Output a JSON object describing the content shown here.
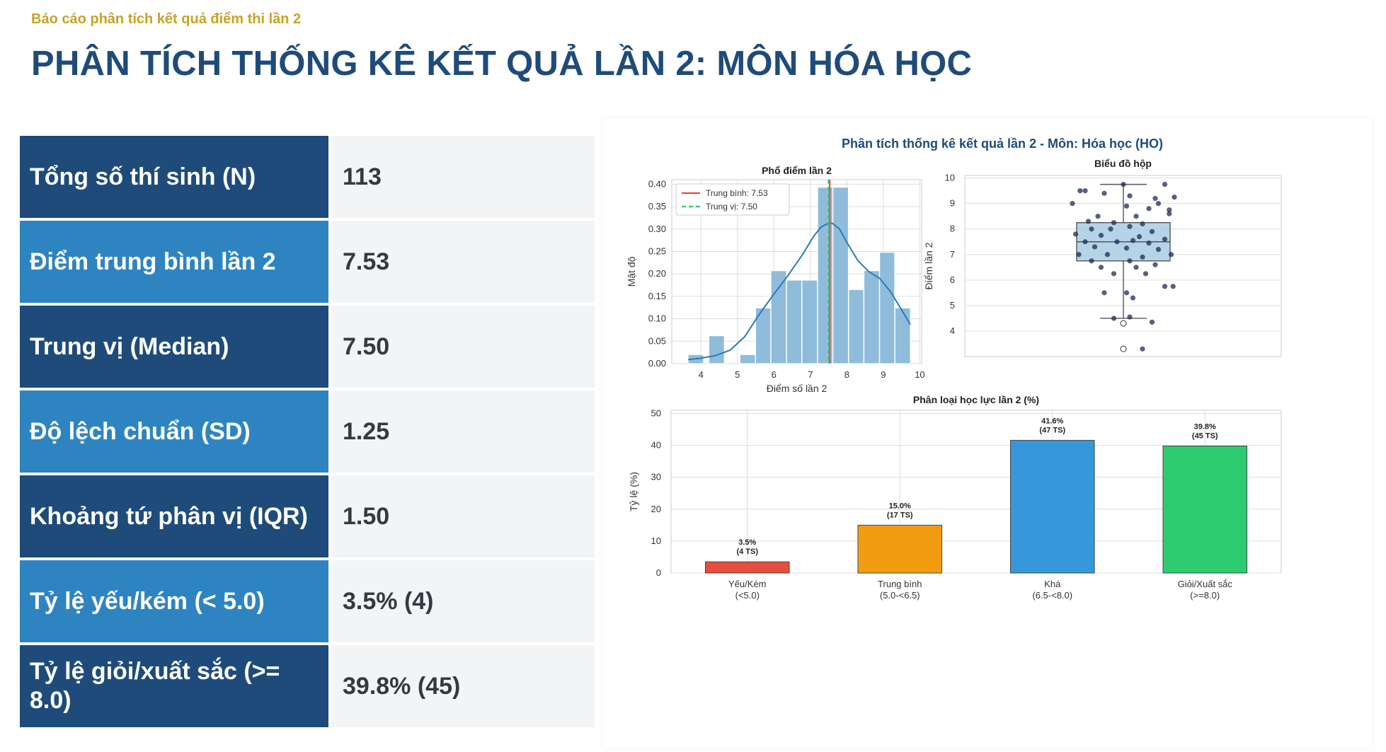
{
  "header": {
    "kicker": "Báo cáo phân tích kết quả điểm thi lần 2",
    "title": "PHÂN TÍCH THỐNG KÊ KẾT QUẢ LẦN 2: MÔN HÓA HỌC"
  },
  "stats": [
    {
      "label": "Tổng số thí sinh (N)",
      "value": "113"
    },
    {
      "label": "Điểm trung bình lần 2",
      "value": "7.53"
    },
    {
      "label": "Trung vị (Median)",
      "value": "7.50"
    },
    {
      "label": "Độ lệch chuẩn (SD)",
      "value": "1.25"
    },
    {
      "label": "Khoảng tứ phân vị (IQR)",
      "value": "1.50"
    },
    {
      "label": "Tỷ lệ yếu/kém (< 5.0)",
      "value": "3.5% (4)"
    },
    {
      "label": "Tỷ lệ giỏi/xuất sắc (>= 8.0)",
      "value": "39.8% (45)"
    }
  ],
  "colors": {
    "dark_label": "#1e4b7a",
    "light_label": "#2e84c1",
    "kicker": "#c9a227",
    "hist_bar": "#8fbcdb",
    "kde": "#2a7ab5",
    "mean_line": "#e74c3c",
    "median_line": "#2ecc71"
  },
  "chart_data": [
    {
      "type": "histogram",
      "suptitle": "Phân tích thống kê kết quả lần 2 - Môn: Hóa học (HO)",
      "title": "Phổ điểm lần 2",
      "xlabel": "Điểm số lần 2",
      "ylabel": "Mật độ",
      "xlim": [
        3.2,
        10.05
      ],
      "ylim": [
        0,
        0.41
      ],
      "xticks": [
        4,
        5,
        6,
        7,
        8,
        9,
        10
      ],
      "yticks": [
        0.0,
        0.05,
        0.1,
        0.15,
        0.2,
        0.25,
        0.3,
        0.35,
        0.4
      ],
      "grid": true,
      "bins": [
        {
          "x0": 3.65,
          "x1": 4.07,
          "density": 0.02
        },
        {
          "x0": 4.22,
          "x1": 4.64,
          "density": 0.062
        },
        {
          "x0": 4.65,
          "x1": 5.06,
          "density": 0.0
        },
        {
          "x0": 5.07,
          "x1": 5.49,
          "density": 0.02
        },
        {
          "x0": 5.5,
          "x1": 5.91,
          "density": 0.124
        },
        {
          "x0": 5.92,
          "x1": 6.34,
          "density": 0.207
        },
        {
          "x0": 6.35,
          "x1": 6.76,
          "density": 0.186
        },
        {
          "x0": 6.77,
          "x1": 7.19,
          "density": 0.186
        },
        {
          "x0": 7.2,
          "x1": 7.61,
          "density": 0.393
        },
        {
          "x0": 7.62,
          "x1": 8.04,
          "density": 0.393
        },
        {
          "x0": 8.05,
          "x1": 8.46,
          "density": 0.165
        },
        {
          "x0": 8.47,
          "x1": 8.89,
          "density": 0.207
        },
        {
          "x0": 8.9,
          "x1": 9.31,
          "density": 0.248
        },
        {
          "x0": 9.32,
          "x1": 9.74,
          "density": 0.124
        }
      ],
      "kde": {
        "x": [
          3.65,
          4.0,
          4.4,
          4.8,
          5.2,
          5.6,
          6.0,
          6.4,
          6.8,
          7.1,
          7.3,
          7.5,
          7.6,
          7.8,
          8.0,
          8.3,
          8.6,
          8.9,
          9.2,
          9.5,
          9.74
        ],
        "y": [
          0.009,
          0.012,
          0.018,
          0.03,
          0.06,
          0.11,
          0.155,
          0.198,
          0.245,
          0.285,
          0.305,
          0.313,
          0.313,
          0.3,
          0.27,
          0.23,
          0.205,
          0.19,
          0.16,
          0.12,
          0.087
        ]
      },
      "mean": 7.53,
      "median": 7.5,
      "legend": [
        "Trung bình: 7.53",
        "Trung vị: 7.50"
      ],
      "legend_position": "upper-left"
    },
    {
      "type": "box",
      "title": "Biểu đồ hộp",
      "ylabel": "Điểm lần 2",
      "ylim": [
        3,
        10.1
      ],
      "yticks": [
        4,
        5,
        6,
        7,
        8,
        9,
        10
      ],
      "q1": 6.75,
      "median": 7.5,
      "q3": 8.25,
      "whisker_low": 4.5,
      "whisker_high": 9.75,
      "outliers": [
        4.3,
        3.3
      ],
      "points": [
        {
          "dx": -0.68,
          "y": 9.5
        },
        {
          "dx": -0.6,
          "y": 9.5
        },
        {
          "dx": -0.3,
          "y": 9.4
        },
        {
          "dx": 0.1,
          "y": 9.3
        },
        {
          "dx": 0.5,
          "y": 9.2
        },
        {
          "dx": 0.8,
          "y": 9.25
        },
        {
          "dx": 0.55,
          "y": 9.0
        },
        {
          "dx": -0.8,
          "y": 9.0
        },
        {
          "dx": 0.05,
          "y": 8.9
        },
        {
          "dx": 0.4,
          "y": 8.8
        },
        {
          "dx": 0.72,
          "y": 8.6
        },
        {
          "dx": -0.4,
          "y": 8.5
        },
        {
          "dx": 0.2,
          "y": 8.5
        },
        {
          "dx": -0.55,
          "y": 8.3
        },
        {
          "dx": -0.15,
          "y": 8.25
        },
        {
          "dx": 0.3,
          "y": 8.2
        },
        {
          "dx": -0.5,
          "y": 8.0
        },
        {
          "dx": -0.2,
          "y": 8.0
        },
        {
          "dx": 0.1,
          "y": 8.1
        },
        {
          "dx": 0.45,
          "y": 7.9
        },
        {
          "dx": -0.75,
          "y": 7.8
        },
        {
          "dx": -0.35,
          "y": 7.75
        },
        {
          "dx": 0.25,
          "y": 7.7
        },
        {
          "dx": 0.65,
          "y": 7.6
        },
        {
          "dx": -0.6,
          "y": 7.5
        },
        {
          "dx": -0.1,
          "y": 7.5
        },
        {
          "dx": 0.15,
          "y": 7.55
        },
        {
          "dx": 0.4,
          "y": 7.45
        },
        {
          "dx": -0.45,
          "y": 7.3
        },
        {
          "dx": 0.05,
          "y": 7.25
        },
        {
          "dx": 0.55,
          "y": 7.2
        },
        {
          "dx": 0.75,
          "y": 7.0
        },
        {
          "dx": -0.7,
          "y": 7.0
        },
        {
          "dx": -0.25,
          "y": 7.0
        },
        {
          "dx": 0.3,
          "y": 6.9
        },
        {
          "dx": -0.5,
          "y": 6.75
        },
        {
          "dx": 0.1,
          "y": 6.75
        },
        {
          "dx": 0.5,
          "y": 6.6
        },
        {
          "dx": -0.35,
          "y": 6.5
        },
        {
          "dx": 0.2,
          "y": 6.5
        },
        {
          "dx": -0.15,
          "y": 6.25
        },
        {
          "dx": 0.35,
          "y": 6.25
        },
        {
          "dx": 0.65,
          "y": 5.75
        },
        {
          "dx": 0.78,
          "y": 5.75
        },
        {
          "dx": -0.3,
          "y": 5.5
        },
        {
          "dx": 0.05,
          "y": 5.5
        },
        {
          "dx": 0.15,
          "y": 5.3
        },
        {
          "dx": -0.15,
          "y": 4.5
        },
        {
          "dx": 0.1,
          "y": 4.55
        },
        {
          "dx": 0.45,
          "y": 4.35
        },
        {
          "dx": 0.3,
          "y": 3.3
        },
        {
          "dx": 0.0,
          "y": 9.75
        },
        {
          "dx": 0.65,
          "y": 9.75
        },
        {
          "dx": 0.72,
          "y": 8.75
        }
      ],
      "grid": true
    },
    {
      "type": "bar",
      "title": "Phân loại học lực lần 2 (%)",
      "ylabel": "Tỷ lệ (%)",
      "ylim": [
        0,
        51
      ],
      "yticks": [
        0,
        10,
        20,
        30,
        40,
        50
      ],
      "categories": [
        {
          "line1": "Yếu/Kém",
          "line2": "(<5.0)"
        },
        {
          "line1": "Trung bình",
          "line2": "(5.0-<6.5)"
        },
        {
          "line1": "Khá",
          "line2": "(6.5-<8.0)"
        },
        {
          "line1": "Giỏi/Xuất sắc",
          "line2": "(>=8.0)"
        }
      ],
      "values": [
        3.5,
        15.0,
        41.6,
        39.8
      ],
      "counts": [
        "(4 TS)",
        "(17 TS)",
        "(47 TS)",
        "(45 TS)"
      ],
      "labels": [
        "3.5%",
        "15.0%",
        "41.6%",
        "39.8%"
      ],
      "colors": [
        "#e74c3c",
        "#f39c12",
        "#3498db",
        "#2ecc71"
      ],
      "grid": true
    }
  ]
}
